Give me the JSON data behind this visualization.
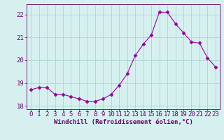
{
  "x": [
    0,
    1,
    2,
    3,
    4,
    5,
    6,
    7,
    8,
    9,
    10,
    11,
    12,
    13,
    14,
    15,
    16,
    17,
    18,
    19,
    20,
    21,
    22,
    23
  ],
  "y": [
    18.7,
    18.8,
    18.8,
    18.5,
    18.5,
    18.4,
    18.3,
    18.2,
    18.2,
    18.3,
    18.5,
    18.9,
    19.4,
    20.2,
    20.7,
    21.1,
    22.1,
    22.1,
    21.6,
    21.2,
    20.8,
    20.75,
    20.1,
    19.7
  ],
  "line_color": "#990099",
  "marker": "D",
  "marker_size": 2.5,
  "bg_color": "#d6f0f0",
  "grid_color": "#aed4d4",
  "xlabel": "Windchill (Refroidissement éolien,°C)",
  "ylim": [
    17.85,
    22.45
  ],
  "yticks": [
    18,
    19,
    20,
    21,
    22
  ],
  "xticks": [
    0,
    1,
    2,
    3,
    4,
    5,
    6,
    7,
    8,
    9,
    10,
    11,
    12,
    13,
    14,
    15,
    16,
    17,
    18,
    19,
    20,
    21,
    22,
    23
  ],
  "axis_color": "#660066",
  "tick_color": "#660066",
  "label_color": "#660066",
  "label_fontsize": 6.5,
  "tick_fontsize": 6.5
}
